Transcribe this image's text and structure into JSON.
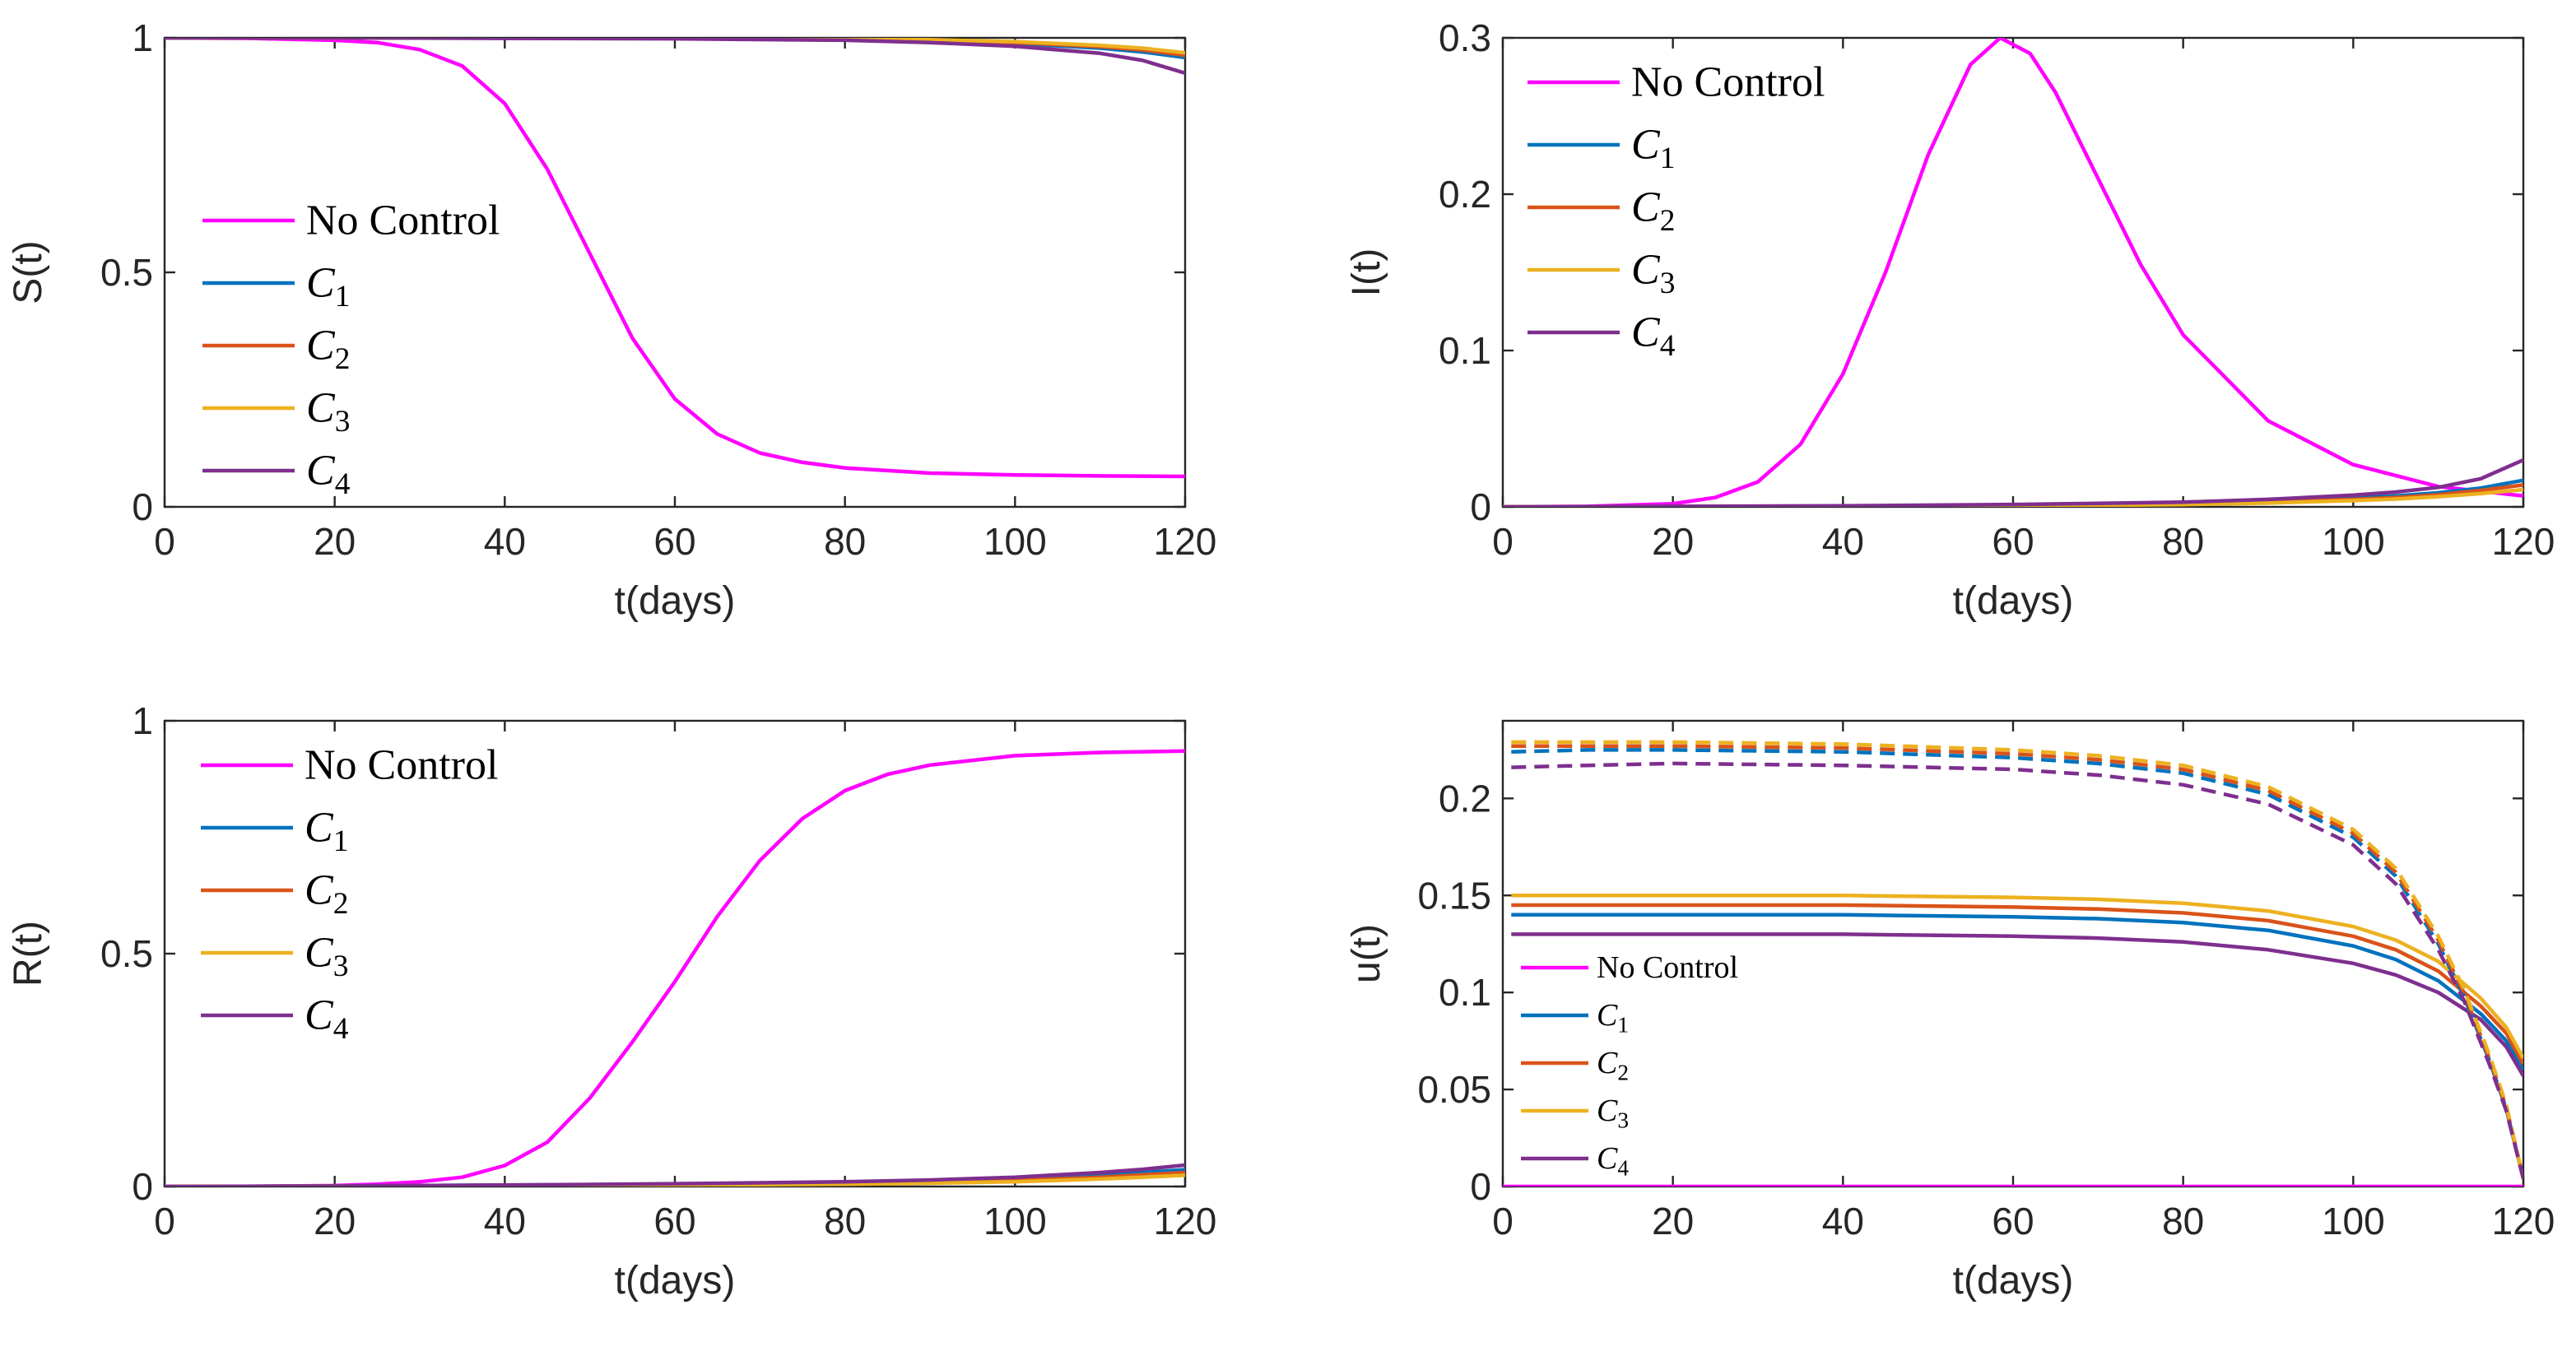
{
  "colors": {
    "no_control": "#FF00FF",
    "c1": "#0072BD",
    "c2": "#D95319",
    "c3": "#EDB120",
    "c4": "#7E2F8E",
    "axis": "#262626"
  },
  "legend": {
    "no_control": "No Control",
    "c_letter": "C",
    "c1_sub": "1",
    "c2_sub": "2",
    "c3_sub": "3",
    "c4_sub": "4"
  },
  "chart_data": [
    {
      "id": "S",
      "type": "line",
      "xlabel": "t(days)",
      "ylabel": "S(t)",
      "xlim": [
        0,
        120
      ],
      "ylim": [
        0,
        1
      ],
      "xticks": [
        "0",
        "20",
        "40",
        "60",
        "80",
        "100",
        "120"
      ],
      "yticks": [
        "0",
        "0.5",
        "1"
      ],
      "legend_position": "center-left",
      "series": [
        {
          "key": "no_control",
          "x": [
            0,
            10,
            20,
            25,
            30,
            35,
            40,
            45,
            50,
            55,
            60,
            65,
            70,
            75,
            80,
            90,
            100,
            110,
            120
          ],
          "y": [
            1.0,
            0.999,
            0.995,
            0.99,
            0.975,
            0.94,
            0.86,
            0.72,
            0.54,
            0.36,
            0.23,
            0.155,
            0.115,
            0.095,
            0.083,
            0.072,
            0.068,
            0.066,
            0.065
          ]
        },
        {
          "key": "c1",
          "x": [
            0,
            20,
            40,
            60,
            80,
            90,
            100,
            110,
            115,
            120
          ],
          "y": [
            1.0,
            1.0,
            1.0,
            0.999,
            0.997,
            0.994,
            0.988,
            0.978,
            0.97,
            0.958
          ]
        },
        {
          "key": "c2",
          "x": [
            0,
            20,
            40,
            60,
            80,
            90,
            100,
            110,
            115,
            120
          ],
          "y": [
            1.0,
            1.0,
            1.0,
            0.999,
            0.997,
            0.995,
            0.99,
            0.981,
            0.974,
            0.963
          ]
        },
        {
          "key": "c3",
          "x": [
            0,
            20,
            40,
            60,
            80,
            90,
            100,
            110,
            115,
            120
          ],
          "y": [
            1.0,
            1.0,
            1.0,
            0.999,
            0.998,
            0.996,
            0.992,
            0.984,
            0.978,
            0.968
          ]
        },
        {
          "key": "c4",
          "x": [
            0,
            20,
            40,
            60,
            80,
            90,
            100,
            110,
            115,
            120
          ],
          "y": [
            1.0,
            1.0,
            0.999,
            0.998,
            0.995,
            0.99,
            0.982,
            0.967,
            0.952,
            0.925
          ]
        }
      ]
    },
    {
      "id": "I",
      "type": "line",
      "xlabel": "t(days)",
      "ylabel": "I(t)",
      "xlim": [
        0,
        120
      ],
      "ylim": [
        0,
        0.3
      ],
      "xticks": [
        "0",
        "20",
        "40",
        "60",
        "80",
        "100",
        "120"
      ],
      "yticks": [
        "0",
        "0.1",
        "0.2",
        "0.3"
      ],
      "legend_position": "top-left",
      "series": [
        {
          "key": "no_control",
          "x": [
            0,
            10,
            20,
            25,
            30,
            35,
            40,
            45,
            50,
            55,
            58.5,
            62,
            65,
            70,
            75,
            80,
            90,
            100,
            110,
            120
          ],
          "y": [
            0,
            0.0003,
            0.002,
            0.006,
            0.016,
            0.04,
            0.085,
            0.15,
            0.225,
            0.283,
            0.3,
            0.29,
            0.265,
            0.21,
            0.155,
            0.11,
            0.055,
            0.027,
            0.013,
            0.007
          ]
        },
        {
          "key": "c1",
          "x": [
            0,
            20,
            40,
            60,
            80,
            90,
            100,
            105,
            110,
            115,
            120
          ],
          "y": [
            0,
            0.0002,
            0.0005,
            0.001,
            0.0022,
            0.0035,
            0.0055,
            0.007,
            0.009,
            0.012,
            0.017
          ]
        },
        {
          "key": "c2",
          "x": [
            0,
            20,
            40,
            60,
            80,
            90,
            100,
            105,
            110,
            115,
            120
          ],
          "y": [
            0,
            0.0002,
            0.0004,
            0.0008,
            0.0018,
            0.003,
            0.0048,
            0.006,
            0.0078,
            0.0105,
            0.014
          ]
        },
        {
          "key": "c3",
          "x": [
            0,
            20,
            40,
            60,
            80,
            90,
            100,
            105,
            110,
            115,
            120
          ],
          "y": [
            0,
            0.0001,
            0.0003,
            0.0006,
            0.0014,
            0.0024,
            0.004,
            0.005,
            0.0065,
            0.0085,
            0.011
          ]
        },
        {
          "key": "c4",
          "x": [
            0,
            20,
            40,
            60,
            80,
            90,
            100,
            105,
            110,
            115,
            120
          ],
          "y": [
            0,
            0.0003,
            0.0007,
            0.0015,
            0.003,
            0.0048,
            0.0075,
            0.0095,
            0.0125,
            0.018,
            0.03
          ]
        }
      ]
    },
    {
      "id": "R",
      "type": "line",
      "xlabel": "t(days)",
      "ylabel": "R(t)",
      "xlim": [
        0,
        120
      ],
      "ylim": [
        0,
        1
      ],
      "xticks": [
        "0",
        "20",
        "40",
        "60",
        "80",
        "100",
        "120"
      ],
      "yticks": [
        "0",
        "0.5",
        "1"
      ],
      "legend_position": "top-left",
      "series": [
        {
          "key": "no_control",
          "x": [
            0,
            10,
            20,
            25,
            30,
            35,
            40,
            45,
            50,
            55,
            60,
            65,
            70,
            75,
            80,
            85,
            90,
            100,
            110,
            120
          ],
          "y": [
            0,
            0.0002,
            0.002,
            0.005,
            0.01,
            0.02,
            0.045,
            0.095,
            0.19,
            0.31,
            0.44,
            0.58,
            0.7,
            0.79,
            0.85,
            0.885,
            0.905,
            0.925,
            0.932,
            0.935
          ]
        },
        {
          "key": "c1",
          "x": [
            0,
            20,
            40,
            60,
            80,
            90,
            100,
            110,
            115,
            120
          ],
          "y": [
            0,
            0.001,
            0.003,
            0.005,
            0.008,
            0.011,
            0.016,
            0.024,
            0.03,
            0.036
          ]
        },
        {
          "key": "c2",
          "x": [
            0,
            20,
            40,
            60,
            80,
            90,
            100,
            110,
            115,
            120
          ],
          "y": [
            0,
            0.001,
            0.002,
            0.004,
            0.007,
            0.009,
            0.013,
            0.02,
            0.025,
            0.03
          ]
        },
        {
          "key": "c3",
          "x": [
            0,
            20,
            40,
            60,
            80,
            90,
            100,
            110,
            115,
            120
          ],
          "y": [
            0,
            0.001,
            0.002,
            0.003,
            0.005,
            0.007,
            0.01,
            0.016,
            0.02,
            0.024
          ]
        },
        {
          "key": "c4",
          "x": [
            0,
            20,
            40,
            60,
            80,
            90,
            100,
            110,
            115,
            120
          ],
          "y": [
            0,
            0.001,
            0.003,
            0.006,
            0.01,
            0.014,
            0.02,
            0.03,
            0.037,
            0.046
          ]
        }
      ]
    },
    {
      "id": "u",
      "type": "line",
      "xlabel": "t(days)",
      "ylabel": "u(t)",
      "xlim": [
        0,
        120
      ],
      "ylim": [
        0,
        0.24
      ],
      "xticks": [
        "0",
        "20",
        "40",
        "60",
        "80",
        "100",
        "120"
      ],
      "yticks": [
        "0",
        "0.05",
        "0.1",
        "0.15",
        "0.2"
      ],
      "legend_position": "bottom-left",
      "series": [
        {
          "key": "no_control",
          "style": "solid",
          "x": [
            0,
            120
          ],
          "y": [
            0,
            0
          ]
        },
        {
          "key": "c1",
          "style": "solid",
          "x": [
            1,
            20,
            40,
            60,
            70,
            80,
            90,
            100,
            105,
            110,
            115,
            118,
            120
          ],
          "y": [
            0.14,
            0.14,
            0.14,
            0.139,
            0.138,
            0.136,
            0.132,
            0.124,
            0.117,
            0.106,
            0.089,
            0.075,
            0.06
          ]
        },
        {
          "key": "c2",
          "style": "solid",
          "x": [
            1,
            20,
            40,
            60,
            70,
            80,
            90,
            100,
            105,
            110,
            115,
            118,
            120
          ],
          "y": [
            0.145,
            0.145,
            0.145,
            0.144,
            0.143,
            0.141,
            0.137,
            0.129,
            0.122,
            0.111,
            0.093,
            0.079,
            0.063
          ]
        },
        {
          "key": "c3",
          "style": "solid",
          "x": [
            1,
            20,
            40,
            60,
            70,
            80,
            90,
            100,
            105,
            110,
            115,
            118,
            120
          ],
          "y": [
            0.15,
            0.15,
            0.15,
            0.149,
            0.148,
            0.146,
            0.142,
            0.134,
            0.127,
            0.116,
            0.097,
            0.082,
            0.066
          ]
        },
        {
          "key": "c4",
          "style": "solid",
          "x": [
            1,
            20,
            40,
            60,
            70,
            80,
            90,
            100,
            105,
            110,
            115,
            118,
            120
          ],
          "y": [
            0.13,
            0.13,
            0.13,
            0.129,
            0.128,
            0.126,
            0.122,
            0.115,
            0.109,
            0.1,
            0.086,
            0.072,
            0.057
          ]
        },
        {
          "key": "c1",
          "style": "dashed",
          "x": [
            1,
            10,
            20,
            40,
            60,
            70,
            80,
            90,
            100,
            105,
            110,
            113,
            116,
            118,
            120
          ],
          "y": [
            0.224,
            0.225,
            0.225,
            0.224,
            0.221,
            0.218,
            0.213,
            0.202,
            0.18,
            0.16,
            0.125,
            0.098,
            0.065,
            0.04,
            0.004
          ]
        },
        {
          "key": "c2",
          "style": "dashed",
          "x": [
            1,
            10,
            20,
            40,
            60,
            70,
            80,
            90,
            100,
            105,
            110,
            113,
            116,
            118,
            120
          ],
          "y": [
            0.227,
            0.227,
            0.227,
            0.226,
            0.223,
            0.22,
            0.215,
            0.204,
            0.182,
            0.162,
            0.127,
            0.1,
            0.066,
            0.041,
            0.004
          ]
        },
        {
          "key": "c3",
          "style": "dashed",
          "x": [
            1,
            10,
            20,
            40,
            60,
            70,
            80,
            90,
            100,
            105,
            110,
            113,
            116,
            118,
            120
          ],
          "y": [
            0.229,
            0.229,
            0.229,
            0.228,
            0.225,
            0.222,
            0.217,
            0.206,
            0.184,
            0.164,
            0.129,
            0.102,
            0.068,
            0.042,
            0.004
          ]
        },
        {
          "key": "c4",
          "style": "dashed",
          "x": [
            1,
            10,
            20,
            40,
            60,
            70,
            80,
            90,
            100,
            105,
            110,
            113,
            116,
            118,
            120
          ],
          "y": [
            0.216,
            0.217,
            0.218,
            0.217,
            0.215,
            0.212,
            0.207,
            0.197,
            0.176,
            0.156,
            0.122,
            0.096,
            0.063,
            0.039,
            0.004
          ]
        }
      ]
    }
  ]
}
